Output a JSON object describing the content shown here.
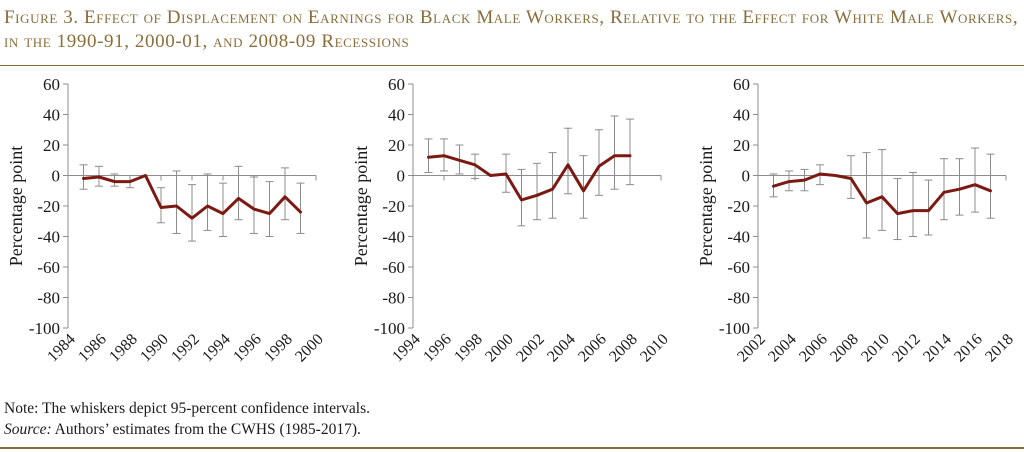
{
  "figure": {
    "title": "Figure 3. Effect of Displacement on Earnings for Black Male Workers, Relative to the Effect for White Male Workers, in the 1990-91, 2000-01, and 2008-09 Recessions"
  },
  "notes": {
    "note": "Note: The whiskers depict 95-percent confidence intervals.",
    "source_label": "Source:",
    "source_text": " Authors’ estimates from the CWHS (1985-2017)."
  },
  "colors": {
    "line": "#7b1a12",
    "whisker": "#8c8c8c",
    "axis": "#8c8c8c",
    "accent": "#8a6e3a"
  },
  "chart_data": [
    {
      "type": "line",
      "ylabel": "Percentage point",
      "ylim": [
        -100,
        60
      ],
      "yticks": [
        60,
        40,
        20,
        0,
        -20,
        -40,
        -60,
        -80,
        -100
      ],
      "xlim": [
        1984,
        2000
      ],
      "xticks": [
        "1984",
        "1986",
        "1988",
        "1990",
        "1992",
        "1994",
        "1996",
        "1998",
        "2000"
      ],
      "series": [
        {
          "x": [
            1985,
            1986,
            1987,
            1988,
            1989,
            1990,
            1991,
            1992,
            1993,
            1994,
            1995,
            1996,
            1997,
            1998,
            1999
          ],
          "y": [
            -2,
            -1,
            -4,
            -4,
            0,
            -21,
            -20,
            -28,
            -20,
            -25,
            -15,
            -22,
            -25,
            -14,
            -24
          ],
          "ci_low": [
            -9,
            -7,
            -7,
            -8,
            0,
            -31,
            -38,
            -43,
            -36,
            -40,
            -29,
            -38,
            -40,
            -29,
            -38
          ],
          "ci_high": [
            7,
            6,
            1,
            0,
            0,
            -8,
            3,
            -6,
            1,
            -5,
            6,
            -1,
            -4,
            5,
            -5
          ]
        }
      ]
    },
    {
      "type": "line",
      "ylabel": "Percentage point",
      "ylim": [
        -100,
        60
      ],
      "yticks": [
        60,
        40,
        20,
        0,
        -20,
        -40,
        -60,
        -80,
        -100
      ],
      "xlim": [
        1994,
        2010
      ],
      "xticks": [
        "1994",
        "1996",
        "1998",
        "2000",
        "2002",
        "2004",
        "2006",
        "2008",
        "2010"
      ],
      "series": [
        {
          "x": [
            1995,
            1996,
            1997,
            1998,
            1999,
            2000,
            2001,
            2002,
            2003,
            2004,
            2005,
            2006,
            2007,
            2008
          ],
          "y": [
            12,
            13,
            10,
            7,
            0,
            1,
            -16,
            -13,
            -9,
            7,
            -10,
            6,
            13,
            13
          ],
          "ci_low": [
            2,
            3,
            1,
            -2,
            0,
            -11,
            -33,
            -29,
            -28,
            -12,
            -28,
            -13,
            -9,
            -6
          ],
          "ci_high": [
            24,
            24,
            20,
            14,
            0,
            14,
            4,
            8,
            15,
            31,
            13,
            30,
            39,
            37
          ]
        }
      ]
    },
    {
      "type": "line",
      "ylabel": "Percentage point",
      "ylim": [
        -100,
        60
      ],
      "yticks": [
        60,
        40,
        20,
        0,
        -20,
        -40,
        -60,
        -80,
        -100
      ],
      "xlim": [
        2002,
        2018
      ],
      "xticks": [
        "2002",
        "2004",
        "2006",
        "2008",
        "2010",
        "2012",
        "2014",
        "2016",
        "2018"
      ],
      "series": [
        {
          "x": [
            2003,
            2004,
            2005,
            2006,
            2007,
            2008,
            2009,
            2010,
            2011,
            2012,
            2013,
            2014,
            2015,
            2016,
            2017
          ],
          "y": [
            -7,
            -4,
            -3,
            1,
            0,
            -2,
            -18,
            -14,
            -25,
            -23,
            -23,
            -11,
            -9,
            -6,
            -10
          ],
          "ci_low": [
            -14,
            -10,
            -10,
            -6,
            0,
            -15,
            -41,
            -36,
            -42,
            -40,
            -39,
            -29,
            -26,
            -24,
            -28
          ],
          "ci_high": [
            1,
            3,
            4,
            7,
            0,
            13,
            15,
            17,
            -2,
            2,
            -3,
            11,
            11,
            18,
            14
          ]
        }
      ]
    }
  ]
}
